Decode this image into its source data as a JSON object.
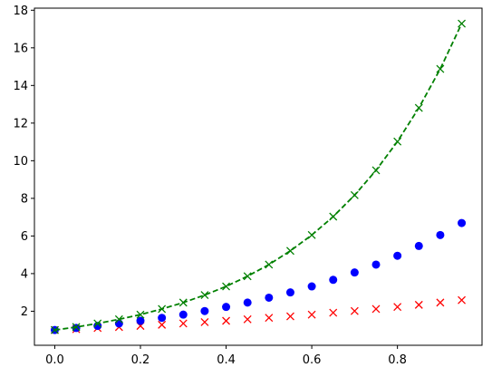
{
  "chart_data": {
    "type": "line",
    "title": "",
    "xlabel": "",
    "ylabel": "",
    "xlim": [
      -0.0475,
      0.9975
    ],
    "ylim": [
      0.19,
      18.11
    ],
    "x_ticks": [
      0.0,
      0.2,
      0.4,
      0.6,
      0.8
    ],
    "x_tick_labels": [
      "0.0",
      "0.2",
      "0.4",
      "0.6",
      "0.8"
    ],
    "y_ticks": [
      2,
      4,
      6,
      8,
      10,
      12,
      14,
      16,
      18
    ],
    "y_tick_labels": [
      "2",
      "4",
      "6",
      "8",
      "10",
      "12",
      "14",
      "16",
      "18"
    ],
    "grid": false,
    "legend": "none",
    "x": [
      0.0,
      0.05,
      0.1,
      0.15,
      0.2,
      0.25,
      0.3,
      0.35,
      0.4,
      0.45,
      0.5,
      0.55,
      0.6,
      0.65,
      0.7,
      0.75,
      0.8,
      0.85,
      0.9,
      0.95
    ],
    "series": [
      {
        "marker": "x",
        "line": "none",
        "color": "#ff0000",
        "values": [
          1.0,
          1.05,
          1.11,
          1.16,
          1.22,
          1.28,
          1.35,
          1.42,
          1.49,
          1.57,
          1.65,
          1.73,
          1.82,
          1.92,
          2.01,
          2.12,
          2.23,
          2.34,
          2.46,
          2.59
        ]
      },
      {
        "marker": "circle",
        "line": "none",
        "color": "#0000ff",
        "values": [
          1.0,
          1.11,
          1.22,
          1.35,
          1.49,
          1.65,
          1.82,
          2.01,
          2.23,
          2.46,
          2.72,
          3.0,
          3.32,
          3.67,
          4.06,
          4.48,
          4.95,
          5.47,
          6.05,
          6.69
        ]
      },
      {
        "marker": "x",
        "line": "dashed",
        "color": "#008000",
        "values": [
          1.0,
          1.16,
          1.35,
          1.57,
          1.82,
          2.12,
          2.46,
          2.86,
          3.32,
          3.86,
          4.48,
          5.21,
          6.05,
          7.03,
          8.17,
          9.49,
          11.02,
          12.81,
          14.88,
          17.29
        ]
      }
    ]
  }
}
